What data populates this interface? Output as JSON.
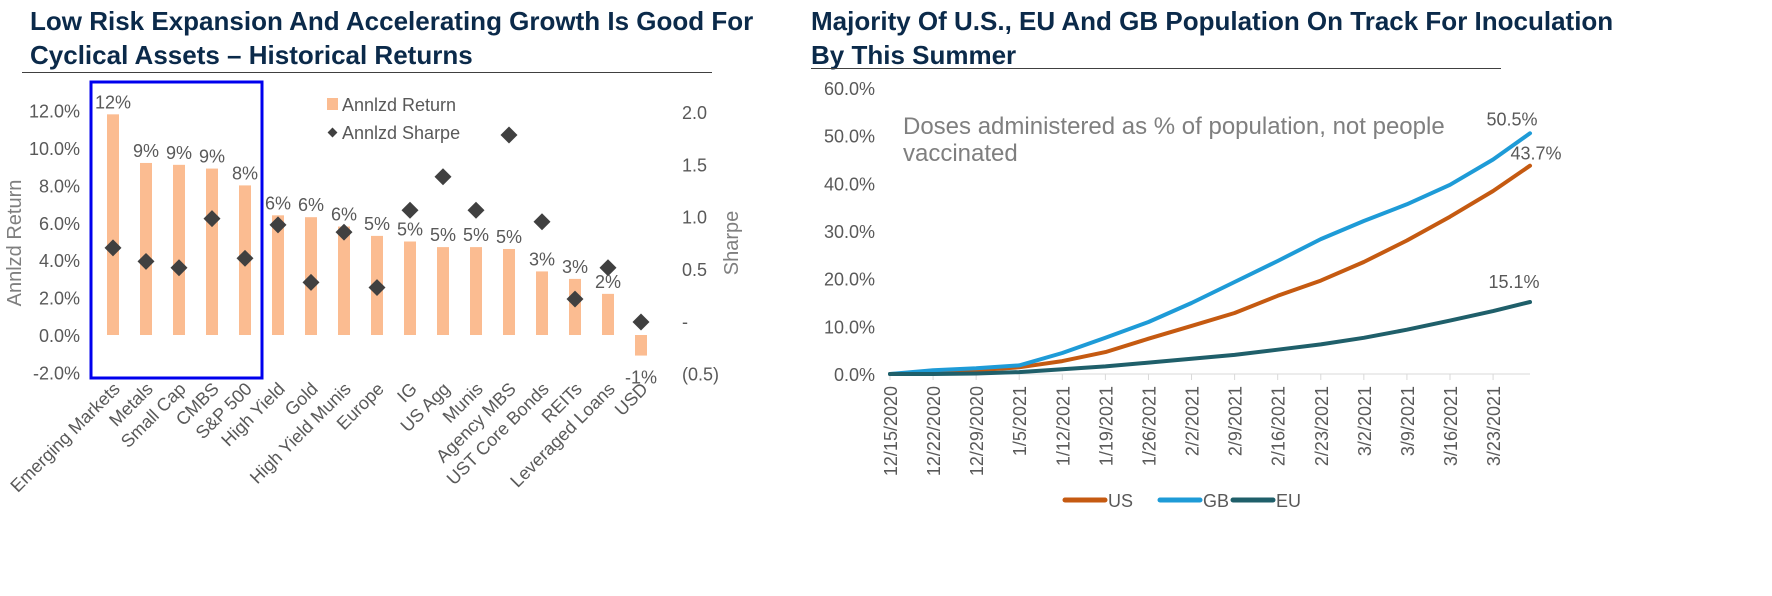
{
  "left_chart": {
    "title_line1": "Low Risk Expansion And Accelerating Growth Is Good For",
    "title_line2": "Cyclical Assets – Historical Returns",
    "highlight_color": "#0000ee",
    "bar_color": "#fbbc91",
    "marker_color": "#404040"
  },
  "right_chart": {
    "title_line1": "Majority Of U.S., EU And GB Population On Track For Inoculation",
    "title_line2": "By This Summer",
    "annotation_line1": "Doses administered as % of population, not people",
    "annotation_line2": "vaccinated"
  },
  "chart_data": [
    {
      "type": "bar",
      "title": "Low Risk Expansion And Accelerating Growth Is Good For Cyclical Assets – Historical Returns",
      "categories": [
        "Emerging Markets",
        "Metals",
        "Small Cap",
        "CMBS",
        "S&P 500",
        "High Yield",
        "Gold",
        "High Yield Munis",
        "Europe",
        "IG",
        "US Agg",
        "Munis",
        "Agency MBS",
        "UST Core Bonds",
        "REITs",
        "Leveraged Loans",
        "USD"
      ],
      "series": [
        {
          "name": "Annlzd Return",
          "axis": "left",
          "values": [
            11.8,
            9.2,
            9.1,
            8.9,
            8.0,
            6.4,
            6.3,
            5.8,
            5.3,
            5.0,
            4.7,
            4.7,
            4.6,
            3.4,
            3.0,
            2.2,
            -1.1
          ]
        },
        {
          "name": "Annlzd Sharpe",
          "axis": "right",
          "values": [
            0.7,
            0.57,
            0.51,
            0.98,
            0.6,
            0.92,
            0.37,
            0.85,
            0.32,
            1.06,
            1.38,
            1.06,
            1.78,
            0.95,
            0.21,
            0.51,
            -0.01
          ]
        }
      ],
      "data_labels": [
        "12%",
        "9%",
        "9%",
        "9%",
        "8%",
        "6%",
        "6%",
        "6%",
        "5%",
        "5%",
        "5%",
        "5%",
        "5%",
        "3%",
        "3%",
        "2%",
        "-1%"
      ],
      "ylabel": "Annlzd Return",
      "y2label": "Sharpe",
      "ylim": [
        -2.0,
        12.0
      ],
      "yticks": [
        "12.0%",
        "10.0%",
        "8.0%",
        "6.0%",
        "4.0%",
        "2.0%",
        "0.0%",
        "-2.0%"
      ],
      "y2lim": [
        -0.5,
        2.0
      ],
      "y2ticks": [
        "2.0",
        "1.5",
        "1.0",
        "0.5",
        "-",
        "(0.5)"
      ],
      "legend": [
        "Annlzd Return",
        "Annlzd Sharpe"
      ],
      "legend_position": "top-right"
    },
    {
      "type": "line",
      "title": "Majority Of U.S., EU And GB Population On Track For Inoculation By This Summer",
      "x_ticks": [
        "12/15/2020",
        "12/22/2020",
        "12/29/2020",
        "1/5/2021",
        "1/12/2021",
        "1/19/2021",
        "1/26/2021",
        "2/2/2021",
        "2/9/2021",
        "2/16/2021",
        "2/23/2021",
        "3/2/2021",
        "3/9/2021",
        "3/16/2021",
        "3/23/2021"
      ],
      "x_day_range": [
        0,
        104
      ],
      "ylim": [
        0,
        60
      ],
      "yticks": [
        "60.0%",
        "50.0%",
        "40.0%",
        "30.0%",
        "20.0%",
        "10.0%",
        "0.0%"
      ],
      "series": [
        {
          "name": "US",
          "color": "#c55a11",
          "end_label": "43.7%",
          "days": [
            0,
            7,
            14,
            21,
            28,
            35,
            42,
            49,
            56,
            63,
            70,
            77,
            84,
            91,
            98,
            104
          ],
          "values": [
            0.0,
            0.2,
            0.8,
            1.4,
            2.7,
            4.6,
            7.4,
            10.1,
            12.8,
            16.4,
            19.6,
            23.5,
            28.0,
            33.0,
            38.4,
            43.7
          ]
        },
        {
          "name": "GB",
          "color": "#1e9bd7",
          "end_label": "50.5%",
          "days": [
            0,
            7,
            14,
            21,
            28,
            35,
            42,
            49,
            56,
            63,
            70,
            77,
            84,
            91,
            98,
            104
          ],
          "values": [
            0.0,
            0.8,
            1.2,
            1.8,
            4.4,
            7.6,
            10.9,
            14.9,
            19.3,
            23.7,
            28.3,
            32.1,
            35.6,
            39.7,
            45.0,
            50.5
          ]
        },
        {
          "name": "EU",
          "color": "#1f5f6a",
          "end_label": "15.1%",
          "days": [
            0,
            7,
            14,
            21,
            28,
            35,
            42,
            49,
            56,
            63,
            70,
            77,
            84,
            91,
            98,
            104
          ],
          "values": [
            0.0,
            0.0,
            0.1,
            0.4,
            1.0,
            1.6,
            2.4,
            3.2,
            4.0,
            5.1,
            6.2,
            7.6,
            9.3,
            11.2,
            13.2,
            15.1
          ]
        }
      ],
      "legend": [
        "US",
        "GB",
        "EU"
      ],
      "legend_position": "bottom"
    }
  ]
}
